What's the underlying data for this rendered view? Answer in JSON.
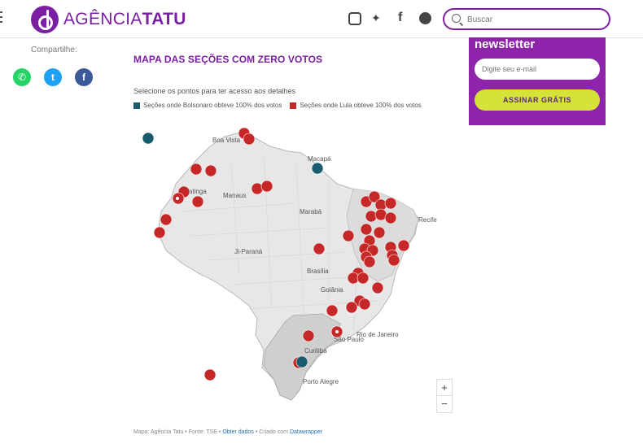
{
  "header": {
    "logo_text_light": "AGÊNCIA",
    "logo_text_bold": "TATU",
    "social": [
      {
        "icon": "instagram-icon",
        "glyph": "◎"
      },
      {
        "icon": "twitter-icon",
        "glyph": "🐦"
      },
      {
        "icon": "facebook-icon",
        "glyph": "f"
      },
      {
        "icon": "github-icon",
        "glyph": "⊛"
      }
    ],
    "search_placeholder": "Buscar"
  },
  "share": {
    "label": "Compartilhe:",
    "items": [
      {
        "icon": "whatsapp-icon",
        "glyph": "✆",
        "color": "#25d366"
      },
      {
        "icon": "twitter-icon",
        "glyph": "t",
        "color": "#1da1f2"
      },
      {
        "icon": "facebook-icon",
        "glyph": "f",
        "color": "#3b5998"
      }
    ]
  },
  "map": {
    "title": "MAPA DAS SEÇÕES COM ZERO VOTOS",
    "subtitle": "Selecione os pontos para ter acesso aos detalhes",
    "legend": [
      {
        "label": "Seções onde Bolsonaro obteve 100% dos votos",
        "color": "#1a5a6e"
      },
      {
        "label": "Seções onde Lula obteve 100% dos votos",
        "color": "#c62828"
      }
    ],
    "city_labels": [
      "Boa Vista",
      "Macapá",
      "Manaus",
      "Tabatinga",
      "Marabá",
      "Recife",
      "Ji-Paraná",
      "Brasília",
      "Goiânia",
      "São Paulo",
      "Rio de Janeiro",
      "Curitiba",
      "Porto Alegre"
    ],
    "zoom_in": "+",
    "zoom_out": "−",
    "footer": {
      "source_text": "Mapa: Agência Tatu • Fonte: TSE •",
      "data_link": "Obter dados",
      "made_with": "• Criado com",
      "tool_link": "Datawrapper"
    }
  },
  "newsletter": {
    "title": "newsletter",
    "email_placeholder": "Digite seu e-mail",
    "button_label": "ASSINAR GRÁTIS"
  },
  "colors": {
    "brand_purple": "#7b1fa2",
    "newsletter_bg": "#8e24aa",
    "button_lime": "#d4e23a",
    "lula_red": "#c62828",
    "bolsonaro_teal": "#1a5a6e"
  }
}
